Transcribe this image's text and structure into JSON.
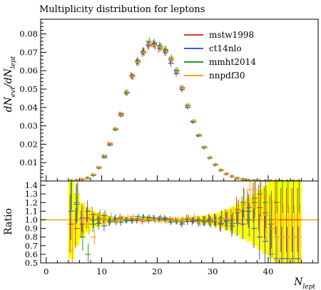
{
  "chart_data": {
    "type": "histogram",
    "title": "Multiplicity distribution for leptons",
    "xlabel_main": "N",
    "xlabel_sub": "lept",
    "ylabel_main": "dN",
    "ylabel_sub1": "evt",
    "ylabel_mid": "/dN",
    "ylabel_sub2": "lept",
    "ratio_ylabel": "Ratio",
    "xlim": [
      -1,
      49
    ],
    "ylim": [
      0,
      0.088
    ],
    "ratio_ylim": [
      0.5,
      1.45
    ],
    "xticks": [
      "0",
      "10",
      "20",
      "30",
      "40"
    ],
    "yticks": [
      "0.01",
      "0.02",
      "0.03",
      "0.04",
      "0.05",
      "0.06",
      "0.07",
      "0.08"
    ],
    "ratio_yticks": [
      "0.5",
      "0.6",
      "0.7",
      "0.8",
      "0.9",
      "1.0",
      "1.1",
      "1.2",
      "1.3",
      "1.4"
    ],
    "legend_position": "top-right",
    "bin_edges": [
      4,
      5,
      6,
      7,
      8,
      9,
      10,
      11,
      12,
      13,
      14,
      15,
      16,
      17,
      18,
      19,
      20,
      21,
      22,
      23,
      24,
      25,
      26,
      27,
      28,
      29,
      30,
      31,
      32,
      33,
      34,
      35,
      36,
      37,
      38,
      39,
      40,
      41,
      42,
      43,
      44,
      45,
      46
    ],
    "series": [
      {
        "name": "mstw1998",
        "color": "#e8312b",
        "values": [
          0.0001,
          0.0003,
          0.0007,
          0.0015,
          0.0035,
          0.0075,
          0.0138,
          0.0205,
          0.0285,
          0.0368,
          0.0482,
          0.0575,
          0.0646,
          0.0696,
          0.0742,
          0.0745,
          0.072,
          0.071,
          0.0658,
          0.0598,
          0.0508,
          0.041,
          0.0325,
          0.0248,
          0.0183,
          0.0126,
          0.0087,
          0.0058,
          0.0038,
          0.0024,
          0.0014,
          0.0008,
          0.0004,
          0.0002,
          0.0001,
          5e-05,
          3e-05,
          2e-05,
          1e-05,
          1e-05,
          1e-05,
          1e-05
        ],
        "ratio": [
          0.95,
          0.9,
          0.95,
          1.02,
          1.06,
          1.0,
          1.02,
          0.98,
          1.0,
          1.03,
          1.0,
          1.01,
          0.99,
          0.98,
          1.02,
          1.02,
          1.0,
          1.02,
          1.01,
          1.0,
          0.97,
          1.02,
          0.98,
          1.0,
          0.99,
          1.01,
          1.0,
          0.96,
          1.02,
          1.0,
          1.12,
          1.1,
          1.14,
          1.2,
          1.14,
          1.08,
          0.95,
          1.2,
          1.0,
          1.0,
          1.0,
          1.0
        ]
      },
      {
        "name": "ct14nlo",
        "color": "#3a5bd9",
        "values": [
          0.0001,
          0.0003,
          0.0008,
          0.0017,
          0.003,
          0.007,
          0.0128,
          0.0195,
          0.0278,
          0.0355,
          0.048,
          0.057,
          0.0655,
          0.0705,
          0.0735,
          0.075,
          0.0735,
          0.07,
          0.064,
          0.0585,
          0.0498,
          0.04,
          0.032,
          0.0245,
          0.018,
          0.0125,
          0.0088,
          0.0058,
          0.0038,
          0.0025,
          0.0015,
          0.0008,
          0.0004,
          0.0002,
          0.0001,
          5e-05,
          3e-05,
          2e-05,
          1e-05,
          1e-05,
          1e-05,
          1e-05
        ],
        "ratio": [
          1.1,
          1.18,
          1.02,
          1.1,
          0.95,
          0.96,
          0.93,
          0.98,
          1.02,
          0.97,
          0.99,
          0.99,
          1.01,
          1.03,
          0.99,
          1.02,
          1.01,
          1.0,
          0.97,
          0.98,
          0.95,
          0.98,
          0.99,
          0.97,
          0.98,
          0.99,
          1.0,
          0.95,
          0.98,
          0.93,
          0.96,
          0.95,
          1.1,
          0.9,
          0.8,
          0.75,
          0.6,
          0.55,
          0.55,
          0.55,
          0.55,
          0.55
        ]
      },
      {
        "name": "mmht2014",
        "color": "#1f9e2e",
        "values": [
          0.0001,
          0.0003,
          0.0007,
          0.0016,
          0.0033,
          0.0072,
          0.0133,
          0.02,
          0.0282,
          0.0362,
          0.0478,
          0.0568,
          0.0645,
          0.0705,
          0.0758,
          0.0738,
          0.0728,
          0.0715,
          0.0668,
          0.0602,
          0.0505,
          0.0412,
          0.0326,
          0.025,
          0.0186,
          0.0128,
          0.009,
          0.006,
          0.0039,
          0.0025,
          0.0015,
          0.0009,
          0.0004,
          0.0002,
          0.0001,
          5e-05,
          3e-05,
          2e-05,
          1e-05,
          1e-05,
          1e-05,
          1e-05
        ],
        "ratio": [
          1.45,
          1.2,
          0.8,
          0.6,
          1.0,
          1.02,
          1.05,
          1.0,
          0.98,
          1.01,
          1.0,
          0.99,
          1.04,
          1.03,
          1.03,
          1.0,
          1.03,
          1.01,
          0.99,
          0.98,
          0.99,
          1.01,
          1.0,
          0.99,
          0.99,
          0.98,
          0.97,
          1.02,
          0.99,
          0.96,
          1.08,
          1.2,
          1.0,
          1.25,
          1.3,
          1.2,
          1.0,
          1.45,
          1.45,
          1.45,
          1.45,
          1.45
        ]
      },
      {
        "name": "nnpdf30",
        "color": "#f5a20f",
        "values": [
          0.0001,
          0.0003,
          0.0007,
          0.0015,
          0.0034,
          0.0073,
          0.0135,
          0.0202,
          0.0283,
          0.036,
          0.0485,
          0.057,
          0.0648,
          0.07,
          0.0745,
          0.074,
          0.073,
          0.0705,
          0.066,
          0.0595,
          0.0505,
          0.0408,
          0.0328,
          0.0252,
          0.0184,
          0.0127,
          0.0089,
          0.0058,
          0.0039,
          0.0024,
          0.0014,
          0.0008,
          0.0004,
          0.0002,
          0.0001,
          5e-05,
          3e-05,
          2e-05,
          1e-05,
          1e-05,
          1e-05,
          1e-05
        ],
        "ratio": [
          0.65,
          1.3,
          1.0,
          0.95,
          0.8,
          1.05,
          1.02,
          1.04,
          0.99,
          1.0,
          1.03,
          1.04,
          1.02,
          1.01,
          1.01,
          1.0,
          0.99,
          0.98,
          1.0,
          1.0,
          0.99,
          1.02,
          1.03,
          0.97,
          1.0,
          0.97,
          1.0,
          1.01,
          1.02,
          1.03,
          1.1,
          1.18,
          1.35,
          1.35,
          1.25,
          1.05,
          0.9,
          0.8,
          0.8,
          0.8,
          0.8,
          0.8
        ]
      }
    ],
    "band": {
      "color": "#ffff00",
      "lower": [
        0.55,
        0.7,
        0.8,
        0.85,
        0.9,
        0.92,
        0.94,
        0.96,
        0.97,
        0.97,
        0.98,
        0.98,
        0.98,
        0.98,
        0.98,
        0.98,
        0.98,
        0.98,
        0.98,
        0.98,
        0.97,
        0.97,
        0.97,
        0.96,
        0.95,
        0.94,
        0.93,
        0.9,
        0.88,
        0.85,
        0.82,
        0.78,
        0.75,
        0.7,
        0.65,
        0.6,
        0.55,
        0.5,
        0.5,
        0.5,
        0.5,
        0.5
      ],
      "upper": [
        1.45,
        1.3,
        1.2,
        1.15,
        1.1,
        1.08,
        1.06,
        1.04,
        1.03,
        1.03,
        1.02,
        1.02,
        1.02,
        1.02,
        1.02,
        1.02,
        1.02,
        1.02,
        1.02,
        1.02,
        1.03,
        1.03,
        1.03,
        1.04,
        1.05,
        1.06,
        1.07,
        1.1,
        1.12,
        1.15,
        1.18,
        1.22,
        1.25,
        1.3,
        1.35,
        1.4,
        1.45,
        1.45,
        1.45,
        1.45,
        1.45,
        1.45
      ]
    },
    "ratio_reference": {
      "value": 1.0,
      "color": "#f5a20f"
    }
  }
}
